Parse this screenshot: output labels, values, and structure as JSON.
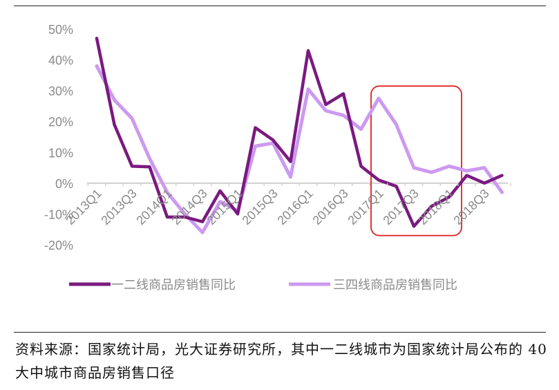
{
  "chart_data": {
    "type": "line",
    "x": [
      "2013Q1",
      "2013Q2",
      "2013Q3",
      "2013Q4",
      "2014Q1",
      "2014Q2",
      "2014Q3",
      "2014Q4",
      "2015Q1",
      "2015Q2",
      "2015Q3",
      "2015Q4",
      "2016Q1",
      "2016Q2",
      "2016Q3",
      "2016Q4",
      "2017Q1",
      "2017Q2",
      "2017Q3",
      "2017Q4",
      "2018Q1",
      "2018Q2",
      "2018Q3",
      "2018Q4"
    ],
    "xtick_labels": [
      "2013Q1",
      "2013Q3",
      "2014Q1",
      "2014Q3",
      "2015Q1",
      "2015Q3",
      "2016Q1",
      "2016Q3",
      "2017Q1",
      "2017Q3",
      "2018Q1",
      "2018Q3"
    ],
    "ytick_labels": [
      "50%",
      "40%",
      "30%",
      "20%",
      "10%",
      "0%",
      "-10%",
      "-20%"
    ],
    "ylim": [
      -20,
      50
    ],
    "series": [
      {
        "name": "一二线商品房销售同比",
        "color": "#7a1a7f",
        "values": [
          47,
          19,
          5.5,
          5.3,
          -11,
          -11,
          -12.5,
          -2.5,
          -10,
          18,
          14,
          7,
          43,
          25.5,
          29,
          5.5,
          1,
          -1,
          -14,
          -7.5,
          -4.5,
          2.5,
          0,
          2.5
        ]
      },
      {
        "name": "三四线商品房销售同比",
        "color": "#cc99f0",
        "values": [
          38,
          27,
          21,
          8,
          -3,
          -10,
          -16,
          -6,
          -9,
          12,
          13,
          2,
          30.5,
          23.5,
          22,
          17.5,
          27.5,
          19,
          5,
          3.5,
          5.5,
          4,
          5,
          -3
        ]
      }
    ],
    "highlight_box": {
      "from": "2017Q1",
      "to": "2018Q1",
      "color": "#e01e1e"
    },
    "legend_position": "bottom",
    "grid": false,
    "title": "",
    "xlabel": "",
    "ylabel": ""
  },
  "source_note": "资料来源：国家统计局，光大证券研究所，其中一二线城市为国家统计局公布的 40 大中城市商品房销售口径"
}
